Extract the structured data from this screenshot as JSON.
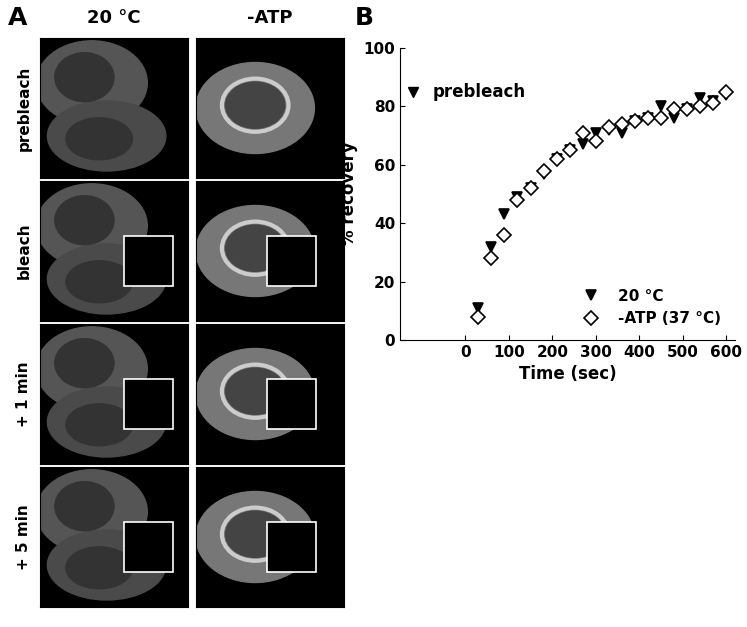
{
  "panel_labels": [
    "A",
    "B"
  ],
  "panel_a": {
    "columns": [
      "20 °C",
      "-ATP"
    ],
    "rows": [
      "prebleach",
      "bleach",
      "+ 1 min",
      "+ 5 min"
    ]
  },
  "chart_data": {
    "type": "scatter",
    "xlabel": "Time (sec)",
    "ylabel": "% recovery",
    "xlim": [
      -150,
      620
    ],
    "xticks": [
      0,
      100,
      200,
      300,
      400,
      500,
      600
    ],
    "ylim": [
      0,
      100
    ],
    "yticks": [
      0,
      20,
      40,
      60,
      80,
      100
    ],
    "legend": "lower right",
    "prebleach": {
      "label": "prebleach",
      "x": -120,
      "value": 85,
      "marker": "triangle_down",
      "color": "#000000"
    },
    "x": [
      30,
      60,
      90,
      120,
      150,
      180,
      210,
      240,
      270,
      300,
      330,
      360,
      390,
      420,
      450,
      480,
      510,
      540,
      570,
      600
    ],
    "series": [
      {
        "name": "20 °C",
        "color": "#000000",
        "marker": "triangle_down",
        "values": [
          11,
          32,
          43,
          49,
          52,
          57,
          62,
          65,
          67,
          71,
          72,
          71,
          75,
          76,
          80,
          76,
          79,
          83,
          82,
          84
        ]
      },
      {
        "name": "-ATP (37 °C)",
        "color": "#000000",
        "marker": "open_diamond",
        "values": [
          8,
          28,
          36,
          48,
          52,
          58,
          62,
          65,
          71,
          68,
          73,
          74,
          75,
          76,
          76,
          79,
          79,
          80,
          81,
          85
        ]
      }
    ]
  }
}
